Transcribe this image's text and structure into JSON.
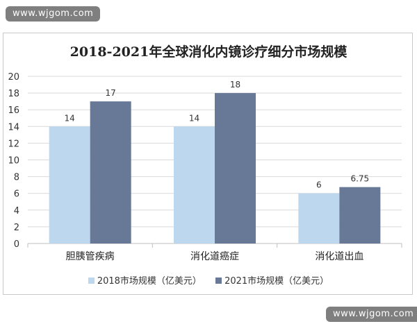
{
  "watermark": {
    "top": "www.wjgom.com",
    "bottom": "www.wjgom.com"
  },
  "chart_data": {
    "type": "bar",
    "title": "2018-2021年全球消化内镜诊疗细分市场规模",
    "categories": [
      "胆胰管疾病",
      "消化道癌症",
      "消化道出血"
    ],
    "series": [
      {
        "name": "2018市场规模（亿美元）",
        "values": [
          14,
          14,
          6
        ],
        "color": "#bdd7ee"
      },
      {
        "name": "2021市场规模（亿美元）",
        "values": [
          17,
          18,
          6.75
        ],
        "color": "#687897"
      }
    ],
    "data_labels": [
      [
        "14",
        "14",
        "6"
      ],
      [
        "17",
        "18",
        "6.75"
      ]
    ],
    "xlabel": "",
    "ylabel": "",
    "ylim": [
      0,
      20
    ],
    "yticks": [
      0,
      2,
      4,
      6,
      8,
      10,
      12,
      14,
      16,
      18,
      20
    ],
    "grid": true,
    "legend_position": "bottom"
  }
}
